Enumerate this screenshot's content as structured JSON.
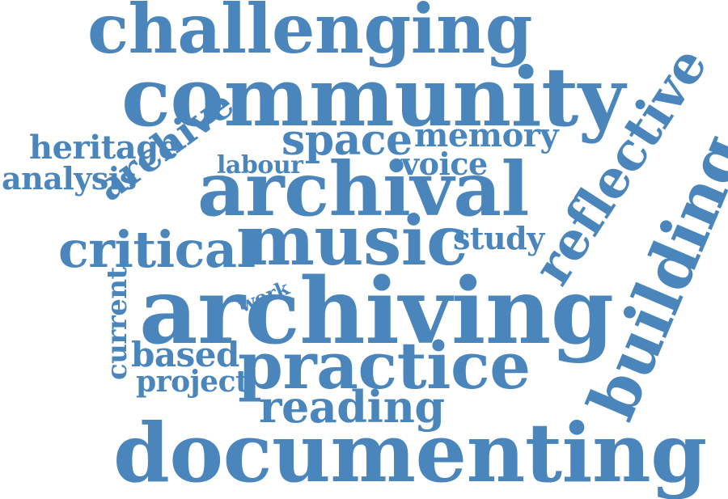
{
  "text_color": "#4a86bb",
  "background_color": "#ffffff",
  "words": {
    "challenging": "challenging",
    "community": "community",
    "space": "space",
    "memory": "memory",
    "heritage": "heritage",
    "analysis": "analysis",
    "archive": "archive",
    "labour": "labour",
    "voice": "voice",
    "archival": "archival",
    "reflective": "reflective",
    "building": "building",
    "critical": "critical",
    "music": "music",
    "study": "study",
    "work": "work",
    "current": "current",
    "archiving": "archiving",
    "based": "based",
    "practice": "practice",
    "project": "project",
    "reading": "reading",
    "documenting": "documenting"
  }
}
